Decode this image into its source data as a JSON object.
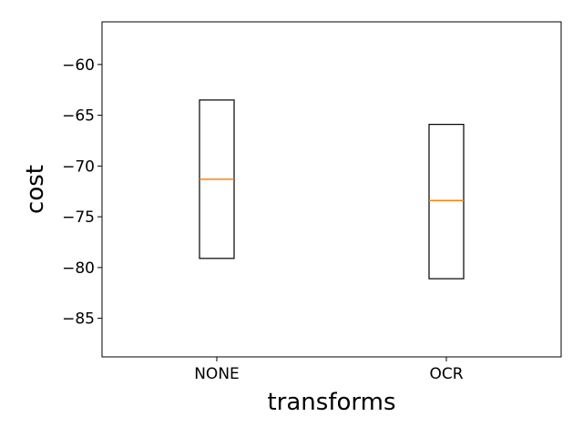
{
  "chart_data": {
    "type": "box",
    "title": "",
    "xlabel": "transforms",
    "ylabel": "cost",
    "categories": [
      "NONE",
      "OCR"
    ],
    "boxes": [
      {
        "category": "NONE",
        "q1": -79.1,
        "median": -71.3,
        "q3": -63.5
      },
      {
        "category": "OCR",
        "q1": -81.1,
        "median": -73.4,
        "q3": -65.9
      }
    ],
    "ylim": [
      -88.8,
      -55.8
    ],
    "yticks": [
      -60,
      -65,
      -70,
      -75,
      -80,
      -85
    ],
    "ytick_labels": [
      "−60",
      "−65",
      "−70",
      "−75",
      "−80",
      "−85"
    ],
    "grid": false,
    "legend": "none",
    "colors": {
      "box": "#000000",
      "median": "#ff7f0e",
      "axes": "#000000"
    }
  }
}
